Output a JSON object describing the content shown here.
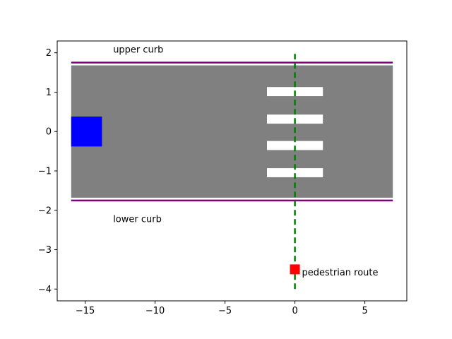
{
  "chart_data": {
    "type": "diagram-plot",
    "title": "",
    "xlabel": "",
    "ylabel": "",
    "xlim": [
      -17,
      8
    ],
    "ylim": [
      -4.3,
      2.3
    ],
    "xticks": [
      -15,
      -10,
      -5,
      0,
      5
    ],
    "xtick_labels": [
      "−15",
      "−10",
      "−5",
      "0",
      "5"
    ],
    "yticks": [
      -4,
      -3,
      -2,
      -1,
      0,
      1,
      2
    ],
    "ytick_labels": [
      "−4",
      "−3",
      "−2",
      "−1",
      "0",
      "1",
      "2"
    ],
    "grid": false,
    "road": {
      "x": [
        -16,
        7
      ],
      "y": [
        -1.68,
        1.68
      ],
      "color": "#808080"
    },
    "curbs": [
      {
        "name": "upper curb",
        "y": 1.75,
        "x": [
          -16,
          7
        ],
        "color": "#800080"
      },
      {
        "name": "lower curb",
        "y": -1.75,
        "x": [
          -16,
          7
        ],
        "color": "#800080"
      }
    ],
    "crosswalk_stripes": [
      {
        "x": [
          -2,
          2
        ],
        "y": [
          0.9,
          1.13
        ]
      },
      {
        "x": [
          -2,
          2
        ],
        "y": [
          0.2,
          0.43
        ]
      },
      {
        "x": [
          -2,
          2
        ],
        "y": [
          -0.47,
          -0.24
        ]
      },
      {
        "x": [
          -2,
          2
        ],
        "y": [
          -1.16,
          -0.93
        ]
      }
    ],
    "stripe_color": "#ffffff",
    "vehicle": {
      "x": [
        -16,
        -13.8
      ],
      "y": [
        -0.38,
        0.38
      ],
      "color": "#0000ff"
    },
    "pedestrian_route": {
      "x": 0,
      "y": [
        -4,
        2
      ],
      "color": "#008000",
      "style": "dashed"
    },
    "pedestrian": {
      "x": 0,
      "y": -3.5,
      "size": 0.7,
      "color": "#ff0000"
    },
    "annotations": [
      {
        "text": "upper curb",
        "x": -13,
        "y": 2.0
      },
      {
        "text": "lower curb",
        "x": -13,
        "y": -2.3
      },
      {
        "text": "pedestrian route",
        "x": 0.5,
        "y": -3.65
      }
    ]
  }
}
